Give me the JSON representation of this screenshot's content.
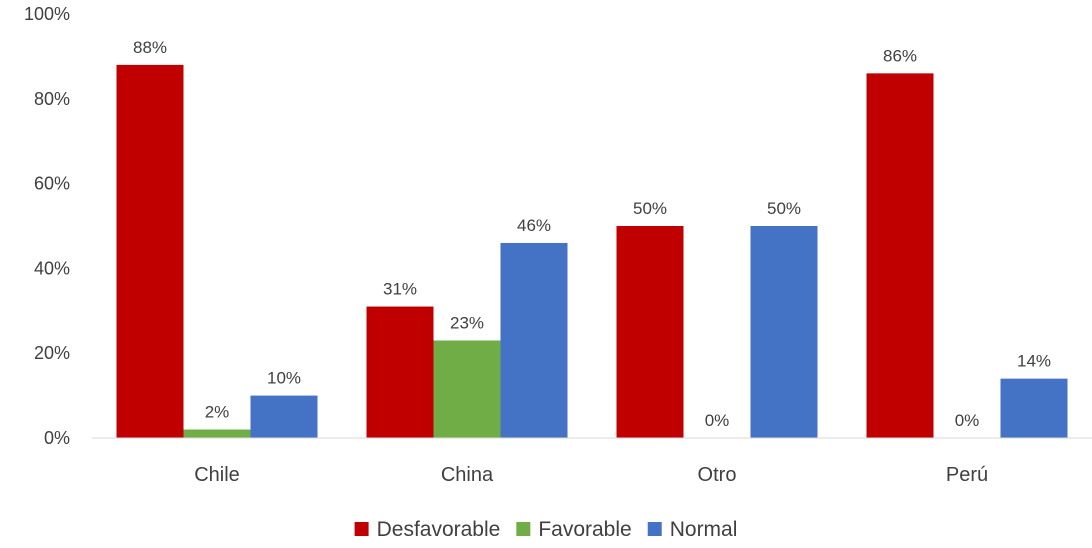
{
  "chart_data": {
    "type": "bar",
    "categories": [
      "Chile",
      "China",
      "Otro",
      "Perú"
    ],
    "series": [
      {
        "name": "Desfavorable",
        "color": "#C00000",
        "values": [
          88,
          31,
          50,
          86
        ],
        "labels": [
          "88%",
          "31%",
          "50%",
          "86%"
        ]
      },
      {
        "name": "Favorable",
        "color": "#70AD47",
        "values": [
          2,
          23,
          0,
          0
        ],
        "labels": [
          "2%",
          "23%",
          "0%",
          "0%"
        ]
      },
      {
        "name": "Normal",
        "color": "#4472C4",
        "values": [
          10,
          46,
          50,
          14
        ],
        "labels": [
          "10%",
          "46%",
          "50%",
          "14%"
        ]
      }
    ],
    "ylim": [
      0,
      100
    ],
    "yticks": [
      0,
      20,
      40,
      60,
      80,
      100
    ],
    "ytick_labels": [
      "0%",
      "20%",
      "40%",
      "60%",
      "80%",
      "100%"
    ],
    "grid": false,
    "legend_position": "bottom",
    "title": "",
    "xlabel": "",
    "ylabel": ""
  }
}
